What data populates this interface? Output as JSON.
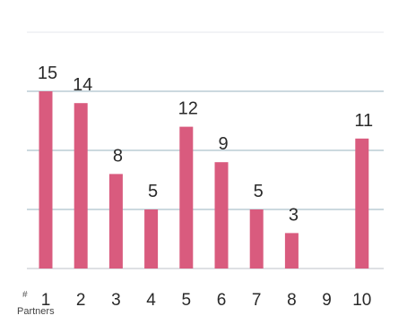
{
  "chart_data": {
    "type": "bar",
    "categories": [
      "1",
      "2",
      "3",
      "4",
      "5",
      "6",
      "7",
      "8",
      "9",
      "10"
    ],
    "values": [
      15,
      14,
      8,
      5,
      12,
      9,
      5,
      3,
      null,
      11
    ],
    "data_labels": [
      "15",
      "14",
      "8",
      "5",
      "12",
      "9",
      "5",
      "3",
      "",
      "11"
    ],
    "ylim": [
      0,
      20
    ],
    "gridlines": [
      0,
      5,
      10,
      15
    ],
    "grid": true,
    "legend": "none",
    "bar_color": "#d95b7e",
    "x_marker": "#",
    "xlabel": "Partners"
  }
}
